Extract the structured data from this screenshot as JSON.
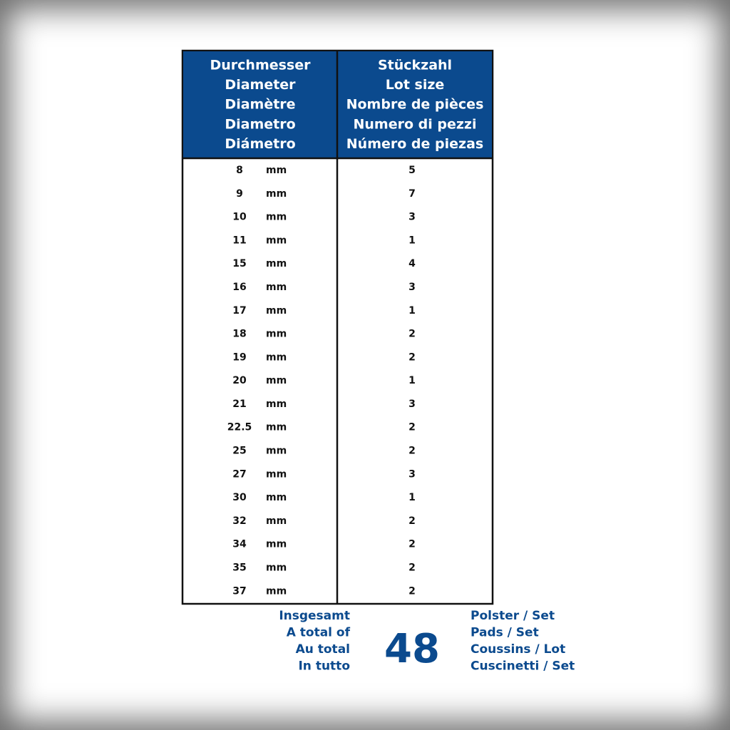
{
  "header": {
    "diameter": [
      "Durchmesser",
      "Diameter",
      "Diamètre",
      "Diametro",
      "Diámetro"
    ],
    "lot_size": [
      "Stückzahl",
      "Lot size",
      "Nombre de pièces",
      "Numero di pezzi",
      "Número de piezas"
    ]
  },
  "table": {
    "rows": [
      [
        "8",
        "mm",
        "5"
      ],
      [
        "9",
        "mm",
        "7"
      ],
      [
        "10",
        "mm",
        "3"
      ],
      [
        "11",
        "mm",
        "1"
      ],
      [
        "15",
        "mm",
        "4"
      ],
      [
        "16",
        "mm",
        "3"
      ],
      [
        "17",
        "mm",
        "1"
      ],
      [
        "18",
        "mm",
        "2"
      ],
      [
        "19",
        "mm",
        "2"
      ],
      [
        "20",
        "mm",
        "1"
      ],
      [
        "21",
        "mm",
        "3"
      ],
      [
        "22.5",
        "mm",
        "2"
      ],
      [
        "25",
        "mm",
        "2"
      ],
      [
        "27",
        "mm",
        "3"
      ],
      [
        "30",
        "mm",
        "1"
      ],
      [
        "32",
        "mm",
        "2"
      ],
      [
        "34",
        "mm",
        "2"
      ],
      [
        "35",
        "mm",
        "2"
      ],
      [
        "37",
        "mm",
        "2"
      ]
    ]
  },
  "footer": {
    "total_label": [
      "Insgesamt",
      "A total of",
      "Au total",
      "In tutto"
    ],
    "total": "48",
    "unit_label": [
      "Polster / Set",
      "Pads / Set",
      "Coussins / Lot",
      "Cuscinetti / Set"
    ]
  }
}
